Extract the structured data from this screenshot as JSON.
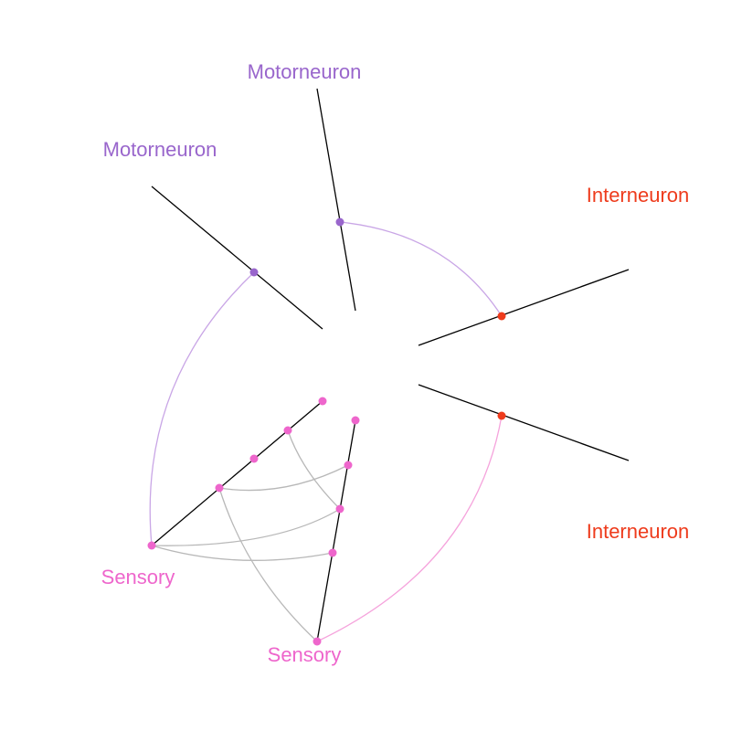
{
  "diagram": {
    "type": "hive-plot",
    "axes": [
      {
        "id": "motor_top",
        "group": "motor",
        "label": "Motorneuron"
      },
      {
        "id": "motor_left",
        "group": "motor",
        "label": "Motorneuron"
      },
      {
        "id": "inter_upper",
        "group": "inter",
        "label": "Interneuron"
      },
      {
        "id": "inter_lower",
        "group": "inter",
        "label": "Interneuron"
      },
      {
        "id": "sensory_left",
        "group": "sensory",
        "label": "Sensory"
      },
      {
        "id": "sensory_bottom",
        "group": "sensory",
        "label": "Sensory"
      }
    ],
    "colors": {
      "motor": "#9966cc",
      "inter": "#ee3b1c",
      "sensory": "#ee66cc",
      "axis_line": "#000000",
      "edge_motor": "#c9a6e6",
      "edge_sensory": "#f5a3dc",
      "edge_internal": "#b8b8b8"
    }
  }
}
